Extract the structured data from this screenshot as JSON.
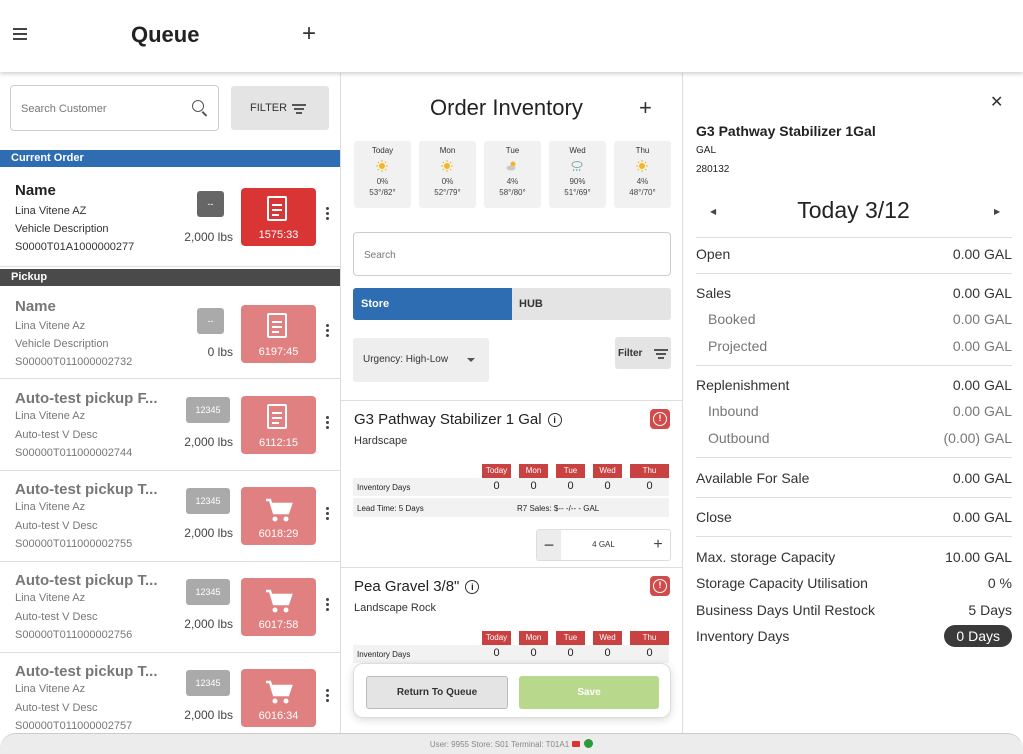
{
  "header": {
    "title": "Queue"
  },
  "queue": {
    "search_placeholder": "Search Customer",
    "filter_label": "FILTER",
    "sections": {
      "current": "Current Order",
      "pickup": "Pickup"
    },
    "current": {
      "name": "Name",
      "customer": "Lina Vitene AZ",
      "desc": "Vehicle Description",
      "id": "S0000T01A1000000277",
      "badge": "--",
      "weight": "2,000 lbs",
      "timer": "1575:33",
      "icon": "document-icon"
    },
    "pickups": [
      {
        "name": "Name",
        "customer": "Lina Vitene Az",
        "desc": "Vehicle Description",
        "id": "S00000T011000002732",
        "badge": "--",
        "weight": "0 lbs",
        "timer": "6197:45",
        "icon": "document-icon"
      },
      {
        "name": "Auto-test pickup F...",
        "customer": "Lina Vitene Az",
        "desc": "Auto-test V Desc",
        "id": "S00000T011000002744",
        "badge": "12345",
        "weight": "2,000 lbs",
        "timer": "6112:15",
        "icon": "document-icon"
      },
      {
        "name": "Auto-test pickup T...",
        "customer": "Lina Vitene Az",
        "desc": "Auto-test V Desc",
        "id": "S00000T011000002755",
        "badge": "12345",
        "weight": "2,000 lbs",
        "timer": "6018:29",
        "icon": "cart-icon"
      },
      {
        "name": "Auto-test pickup T...",
        "customer": "Lina Vitene Az",
        "desc": "Auto-test V Desc",
        "id": "S00000T011000002756",
        "badge": "12345",
        "weight": "2,000 lbs",
        "timer": "6017:58",
        "icon": "cart-icon"
      },
      {
        "name": "Auto-test pickup T...",
        "customer": "Lina Vitene Az",
        "desc": "Auto-test V Desc",
        "id": "S00000T011000002757",
        "badge": "12345",
        "weight": "2,000 lbs",
        "timer": "6016:34",
        "icon": "cart-icon"
      }
    ]
  },
  "inventory": {
    "title": "Order Inventory",
    "weather": [
      {
        "day": "Today",
        "icon": "sun-icon",
        "precip": "0%",
        "temp": "53°/82°"
      },
      {
        "day": "Mon",
        "icon": "sun-icon",
        "precip": "0%",
        "temp": "52°/79°"
      },
      {
        "day": "Tue",
        "icon": "partly-cloudy-icon",
        "precip": "4%",
        "temp": "58°/80°"
      },
      {
        "day": "Wed",
        "icon": "rain-icon",
        "precip": "90%",
        "temp": "51°/69°"
      },
      {
        "day": "Thu",
        "icon": "sun-icon",
        "precip": "4%",
        "temp": "48°/70°"
      }
    ],
    "search_placeholder": "Search",
    "tabs": [
      "Store",
      "HUB"
    ],
    "urgency": "Urgency: High-Low",
    "filter_label": "Filter",
    "days": [
      "Today",
      "Mon",
      "Tue",
      "Wed",
      "Thu"
    ],
    "products": [
      {
        "name": "G3 Pathway Stabilizer 1 Gal",
        "category": "Hardscape",
        "row_label": "Inventory Days",
        "values": [
          "0",
          "0",
          "0",
          "0",
          "0"
        ],
        "lead_time": "Lead Time: 5 Days",
        "r7": "R7 Sales: $-- -/-- - GAL",
        "qty": "4 GAL"
      },
      {
        "name": "Pea Gravel 3/8\"",
        "category": "Landscape Rock",
        "row_label": "Inventory Days",
        "values": [
          "0",
          "0",
          "0",
          "0",
          "0"
        ]
      }
    ],
    "return_label": "Return To Queue",
    "save_label": "Save"
  },
  "detail": {
    "title": "G3 Pathway Stabilizer 1Gal",
    "unit": "GAL",
    "sku": "280132",
    "date": "Today 3/12",
    "open": {
      "k": "Open",
      "v": "0.00 GAL"
    },
    "sales": {
      "k": "Sales",
      "v": "0.00 GAL"
    },
    "booked": {
      "k": "Booked",
      "v": "0.00 GAL"
    },
    "projected": {
      "k": "Projected",
      "v": "0.00 GAL"
    },
    "replenishment": {
      "k": "Replenishment",
      "v": "0.00 GAL"
    },
    "inbound": {
      "k": "Inbound",
      "v": "0.00 GAL"
    },
    "outbound": {
      "k": "Outbound",
      "v": "(0.00) GAL"
    },
    "available": {
      "k": "Available For Sale",
      "v": "0.00 GAL"
    },
    "close": {
      "k": "Close",
      "v": "0.00 GAL"
    },
    "max_storage": {
      "k": "Max. storage Capacity",
      "v": "10.00 GAL"
    },
    "utilisation": {
      "k": "Storage Capacity Utilisation",
      "v": "0 %"
    },
    "restock": {
      "k": "Business Days Until Restock",
      "v": "5 Days"
    },
    "inv_days": {
      "k": "Inventory Days",
      "v": "0 Days"
    }
  },
  "footer": {
    "status": "User: 9955  Store: S01  Terminal: T01A1"
  },
  "colors": {
    "accent": "#2f6db2",
    "alert": "#d14b4b",
    "tile": "#d93535",
    "tile_faded": "#e08080",
    "save": "#b8d98c"
  }
}
